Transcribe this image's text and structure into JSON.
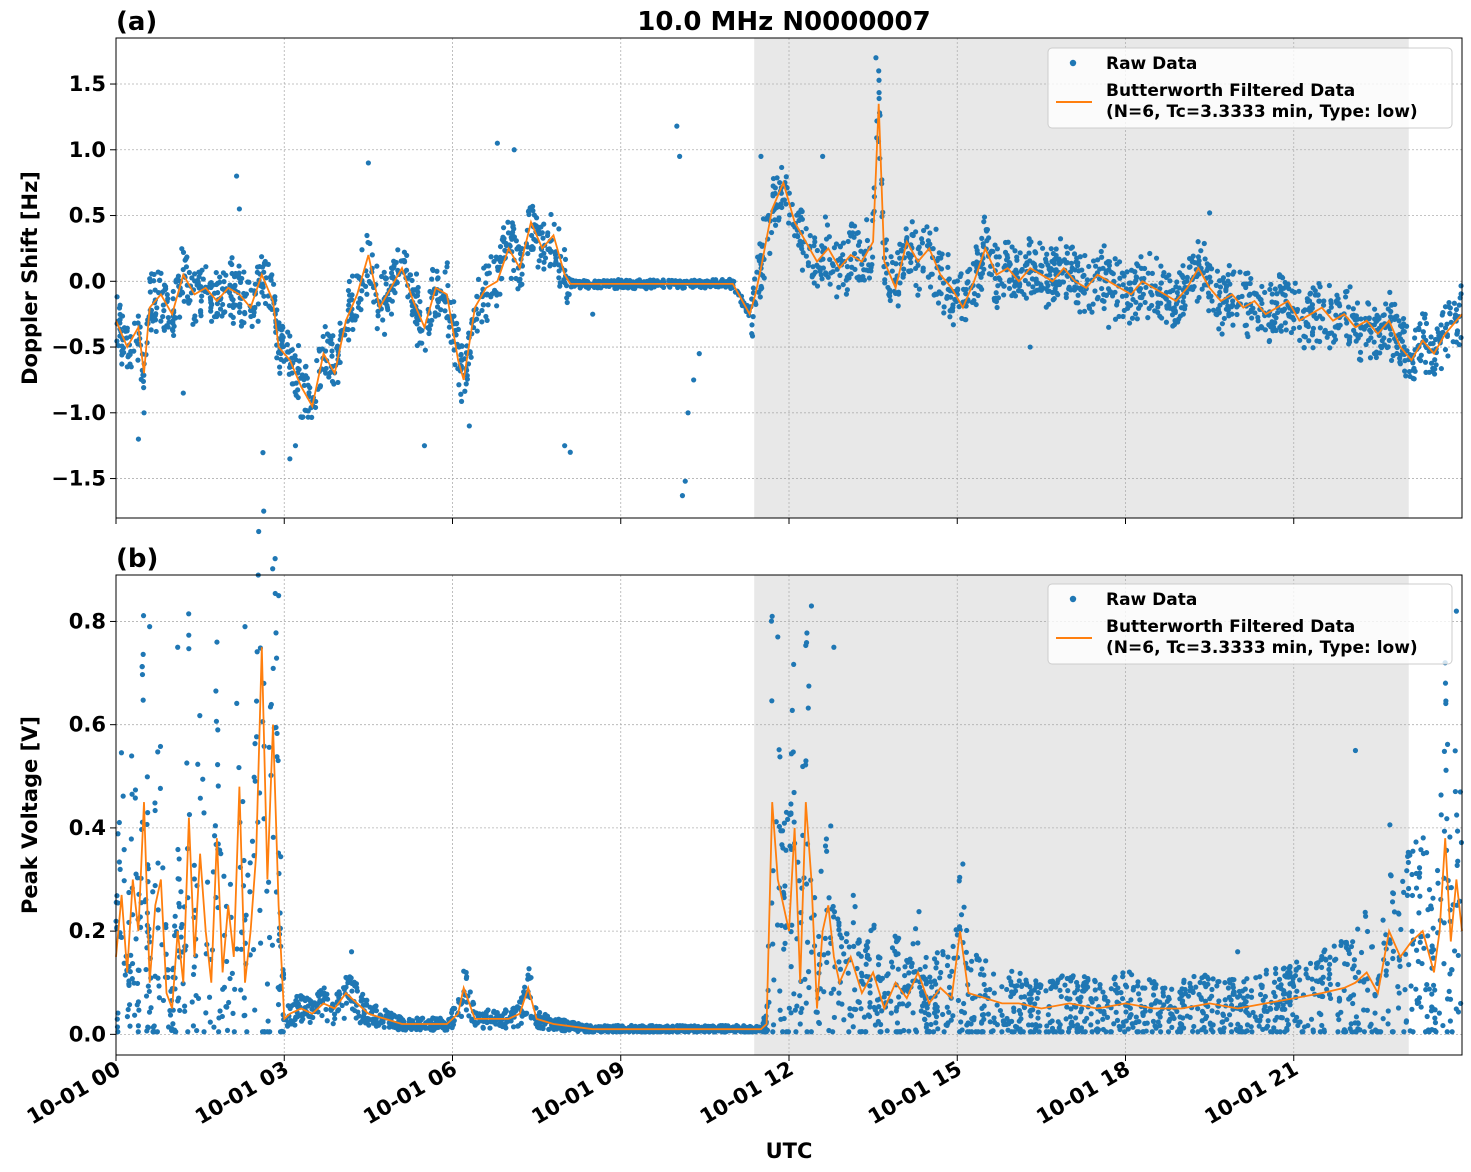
{
  "figure": {
    "title": "10.0 MHz N0000007",
    "xlabel": "UTC",
    "x_tick_labels": [
      "10-01 00",
      "10-01 03",
      "10-01 06",
      "10-01 09",
      "10-01 12",
      "10-01 15",
      "10-01 18",
      "10-01 21"
    ],
    "colors": {
      "raw": "#1f77b4",
      "filtered": "#ff7f0e",
      "shade": "#e8e8e8",
      "grid": "#b0b0b0"
    }
  },
  "legend": {
    "raw_label": "Raw Data",
    "filtered_label_line1": "Butterworth Filtered Data",
    "filtered_label_line2": "(N=6, Tc=3.3333 min, Type: low)"
  },
  "chart_data": [
    {
      "type": "scatter",
      "panel_label": "(a)",
      "ylabel": "Doppler Shift [Hz]",
      "xlim_hours": [
        0,
        24
      ],
      "ylim": [
        -1.8,
        1.85
      ],
      "y_ticks": [
        -1.5,
        -1.0,
        -0.5,
        0.0,
        0.5,
        1.0,
        1.5
      ],
      "y_tick_labels": [
        "−1.5",
        "−1.0",
        "−0.5",
        "0.0",
        "0.5",
        "1.0",
        "1.5"
      ],
      "shaded_hours": [
        11.38,
        23.05
      ],
      "series": [
        {
          "name": "Butterworth Filtered Data",
          "x": [
            0,
            0.2,
            0.4,
            0.5,
            0.6,
            0.8,
            1.0,
            1.2,
            1.4,
            1.6,
            1.8,
            2.0,
            2.2,
            2.4,
            2.6,
            2.8,
            2.9,
            3.1,
            3.3,
            3.5,
            3.7,
            3.9,
            4.1,
            4.3,
            4.5,
            4.7,
            4.9,
            5.1,
            5.3,
            5.5,
            5.7,
            5.9,
            6.1,
            6.2,
            6.4,
            6.6,
            6.8,
            7.0,
            7.2,
            7.4,
            7.6,
            7.8,
            8.0,
            8.1,
            8.5,
            9.0,
            9.5,
            10.0,
            10.5,
            11.0,
            11.3,
            11.4,
            11.5,
            11.7,
            11.9,
            12.1,
            12.3,
            12.5,
            12.7,
            12.9,
            13.1,
            13.3,
            13.5,
            13.6,
            13.7,
            13.9,
            14.1,
            14.3,
            14.5,
            14.7,
            14.9,
            15.1,
            15.3,
            15.5,
            15.7,
            15.9,
            16.1,
            16.3,
            16.5,
            16.7,
            16.9,
            17.1,
            17.3,
            17.5,
            17.7,
            17.9,
            18.1,
            18.3,
            18.5,
            18.7,
            18.9,
            19.1,
            19.3,
            19.5,
            19.7,
            19.9,
            20.1,
            20.3,
            20.5,
            20.7,
            20.9,
            21.1,
            21.3,
            21.5,
            21.7,
            21.9,
            22.1,
            22.3,
            22.5,
            22.7,
            22.9,
            23.1,
            23.3,
            23.5,
            23.7,
            23.9,
            24.0
          ],
          "y": [
            -0.3,
            -0.5,
            -0.35,
            -0.7,
            -0.2,
            -0.1,
            -0.25,
            0.05,
            -0.1,
            -0.05,
            -0.15,
            -0.05,
            -0.1,
            -0.2,
            0.05,
            -0.15,
            -0.5,
            -0.6,
            -0.8,
            -0.95,
            -0.55,
            -0.7,
            -0.3,
            -0.1,
            0.2,
            -0.2,
            -0.05,
            0.1,
            -0.15,
            -0.35,
            -0.05,
            -0.1,
            -0.6,
            -0.75,
            -0.2,
            -0.05,
            0.0,
            0.25,
            0.1,
            0.45,
            0.25,
            0.35,
            0.05,
            -0.02,
            -0.02,
            -0.02,
            -0.02,
            -0.02,
            -0.02,
            -0.02,
            -0.25,
            -0.1,
            0.1,
            0.55,
            0.75,
            0.45,
            0.3,
            0.15,
            0.25,
            0.1,
            0.2,
            0.15,
            0.3,
            1.35,
            0.15,
            -0.05,
            0.3,
            0.15,
            0.25,
            0.05,
            -0.05,
            -0.2,
            0.0,
            0.25,
            0.05,
            0.1,
            0.0,
            0.1,
            0.05,
            0.0,
            0.1,
            0.0,
            -0.05,
            0.05,
            0.0,
            -0.05,
            -0.1,
            0.0,
            -0.05,
            -0.1,
            -0.15,
            -0.05,
            0.1,
            -0.05,
            -0.15,
            -0.1,
            -0.2,
            -0.15,
            -0.25,
            -0.2,
            -0.15,
            -0.3,
            -0.25,
            -0.2,
            -0.3,
            -0.25,
            -0.35,
            -0.3,
            -0.4,
            -0.3,
            -0.5,
            -0.6,
            -0.45,
            -0.55,
            -0.4,
            -0.3,
            -0.25
          ]
        },
        {
          "name": "Raw Data",
          "scatter_band_halfwidth": 0.22,
          "outliers_x": [
            0.4,
            0.5,
            1.2,
            2.15,
            2.2,
            3.1,
            3.2,
            4.5,
            5.5,
            6.3,
            6.8,
            7.1,
            8.0,
            8.1,
            8.5,
            10.0,
            10.05,
            10.1,
            10.15,
            10.2,
            10.3,
            10.4,
            11.5,
            12.6,
            13.55,
            13.6,
            16.3,
            17.7,
            19.5
          ],
          "outliers_y": [
            -1.2,
            -1.0,
            -0.85,
            0.8,
            0.55,
            -1.35,
            -1.25,
            0.9,
            -1.25,
            -1.1,
            1.05,
            1.0,
            -1.25,
            -1.3,
            -0.25,
            1.18,
            0.95,
            -1.63,
            -1.52,
            -1.0,
            -0.75,
            -0.55,
            0.95,
            0.95,
            1.7,
            1.6,
            -0.5,
            -0.35,
            0.52
          ]
        }
      ]
    },
    {
      "type": "scatter",
      "panel_label": "(b)",
      "ylabel": "Peak Voltage [V]",
      "xlim_hours": [
        0,
        24
      ],
      "ylim": [
        -0.04,
        0.89
      ],
      "y_ticks": [
        0.0,
        0.2,
        0.4,
        0.6,
        0.8
      ],
      "y_tick_labels": [
        "0.0",
        "0.2",
        "0.4",
        "0.6",
        "0.8"
      ],
      "shaded_hours": [
        11.38,
        23.05
      ],
      "series": [
        {
          "name": "Butterworth Filtered Data",
          "x": [
            0,
            0.1,
            0.2,
            0.3,
            0.4,
            0.5,
            0.6,
            0.7,
            0.8,
            0.9,
            1.0,
            1.1,
            1.2,
            1.3,
            1.4,
            1.5,
            1.6,
            1.7,
            1.8,
            1.9,
            2.0,
            2.1,
            2.2,
            2.3,
            2.4,
            2.5,
            2.6,
            2.7,
            2.8,
            2.9,
            3.0,
            3.1,
            3.3,
            3.5,
            3.7,
            3.9,
            4.1,
            4.3,
            4.5,
            4.8,
            5.1,
            5.5,
            5.9,
            6.1,
            6.2,
            6.4,
            6.7,
            7.0,
            7.2,
            7.35,
            7.5,
            7.8,
            8.5,
            9.5,
            10.5,
            11.3,
            11.5,
            11.6,
            11.7,
            11.8,
            11.9,
            12.0,
            12.1,
            12.2,
            12.3,
            12.4,
            12.5,
            12.6,
            12.7,
            12.8,
            12.9,
            13.1,
            13.3,
            13.5,
            13.7,
            13.9,
            14.1,
            14.3,
            14.5,
            14.7,
            14.9,
            15.05,
            15.2,
            15.5,
            15.8,
            16.1,
            16.5,
            17.0,
            17.5,
            18.0,
            18.5,
            19.0,
            19.5,
            20.0,
            20.5,
            21.0,
            21.5,
            21.9,
            22.1,
            22.3,
            22.5,
            22.7,
            22.9,
            23.1,
            23.3,
            23.5,
            23.6,
            23.7,
            23.8,
            23.9,
            24.0
          ],
          "y": [
            0.15,
            0.27,
            0.12,
            0.3,
            0.2,
            0.45,
            0.1,
            0.25,
            0.3,
            0.08,
            0.05,
            0.2,
            0.1,
            0.42,
            0.15,
            0.35,
            0.2,
            0.1,
            0.38,
            0.12,
            0.25,
            0.15,
            0.48,
            0.1,
            0.2,
            0.35,
            0.75,
            0.3,
            0.6,
            0.25,
            0.03,
            0.04,
            0.05,
            0.04,
            0.06,
            0.05,
            0.08,
            0.06,
            0.04,
            0.03,
            0.02,
            0.02,
            0.02,
            0.04,
            0.09,
            0.03,
            0.03,
            0.03,
            0.04,
            0.09,
            0.03,
            0.02,
            0.01,
            0.01,
            0.01,
            0.01,
            0.01,
            0.02,
            0.45,
            0.3,
            0.25,
            0.2,
            0.4,
            0.1,
            0.45,
            0.3,
            0.05,
            0.2,
            0.25,
            0.15,
            0.1,
            0.15,
            0.08,
            0.12,
            0.05,
            0.1,
            0.07,
            0.12,
            0.06,
            0.09,
            0.07,
            0.2,
            0.08,
            0.07,
            0.06,
            0.06,
            0.05,
            0.06,
            0.05,
            0.06,
            0.05,
            0.05,
            0.06,
            0.05,
            0.06,
            0.07,
            0.08,
            0.09,
            0.1,
            0.12,
            0.08,
            0.2,
            0.15,
            0.18,
            0.2,
            0.12,
            0.2,
            0.38,
            0.18,
            0.3,
            0.2
          ]
        },
        {
          "name": "Raw Data",
          "scatter_band_halfwidth_fraction": 0.9,
          "outliers_x": [
            0.6,
            1.1,
            1.8,
            2.3,
            2.9,
            4.2,
            7.4,
            11.7,
            11.8,
            12.4,
            12.8,
            15.1,
            20.0,
            22.1,
            23.7,
            23.9
          ],
          "outliers_y": [
            0.79,
            0.75,
            0.76,
            0.79,
            0.85,
            0.16,
            0.11,
            0.81,
            0.77,
            0.83,
            0.75,
            0.33,
            0.16,
            0.55,
            0.72,
            0.82
          ]
        }
      ]
    }
  ]
}
